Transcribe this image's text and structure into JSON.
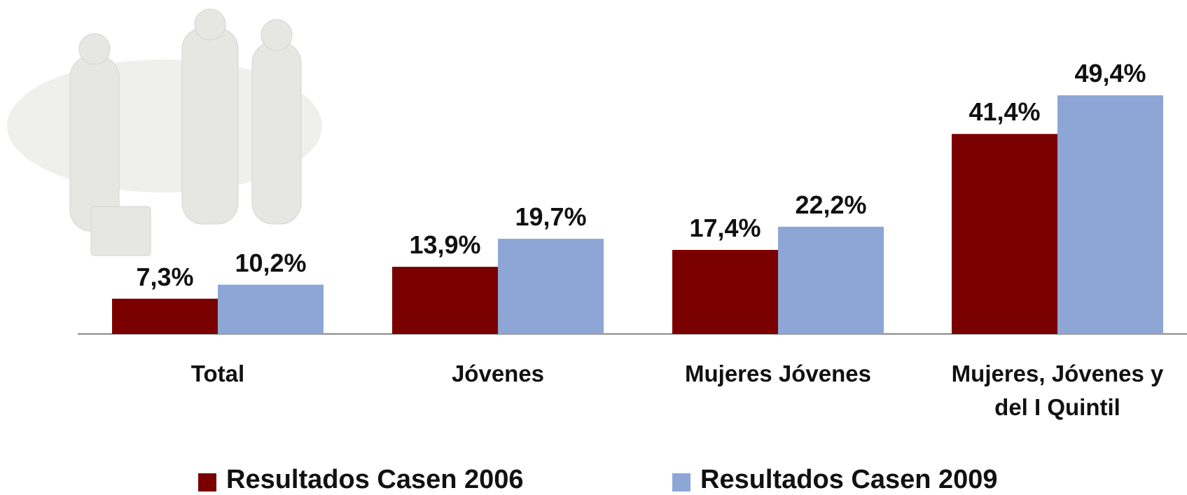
{
  "chart_data": {
    "type": "bar",
    "categories": [
      "Total",
      "Jóvenes",
      "Mujeres Jóvenes",
      "Mujeres, Jóvenes y del I Quintil"
    ],
    "series": [
      {
        "name": "Resultados Casen 2006",
        "color": "#7a0000",
        "values": [
          7.3,
          13.9,
          17.4,
          41.4
        ],
        "value_labels": [
          "7,3%",
          "13,9%",
          "17,4%",
          "41,4%"
        ]
      },
      {
        "name": "Resultados Casen 2009",
        "color": "#8da6d6",
        "values": [
          10.2,
          19.7,
          22.2,
          49.4
        ],
        "value_labels": [
          "10,2%",
          "19,7%",
          "22,2%",
          "49,4%"
        ]
      }
    ]
  }
}
